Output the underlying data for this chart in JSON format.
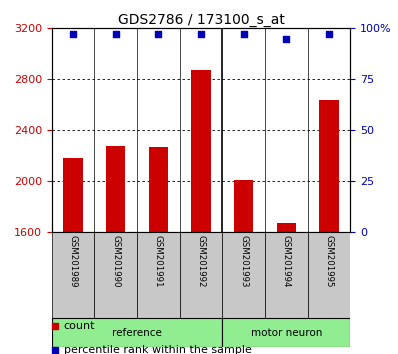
{
  "title": "GDS2786 / 173100_s_at",
  "samples": [
    "GSM201989",
    "GSM201990",
    "GSM201991",
    "GSM201992",
    "GSM201993",
    "GSM201994",
    "GSM201995"
  ],
  "counts": [
    2180,
    2280,
    2270,
    2870,
    2010,
    1670,
    2640
  ],
  "percentile_ranks": [
    97,
    97,
    97,
    97,
    97,
    95,
    97
  ],
  "groups": [
    "reference",
    "reference",
    "reference",
    "reference",
    "motor neuron",
    "motor neuron",
    "motor neuron"
  ],
  "bar_color": "#CC0000",
  "blue_color": "#0000BB",
  "ylim_left": [
    1600,
    3200
  ],
  "ylim_right": [
    0,
    100
  ],
  "yticks_left": [
    1600,
    2000,
    2400,
    2800,
    3200
  ],
  "yticks_right": [
    0,
    25,
    50,
    75,
    100
  ],
  "right_tick_labels": [
    "0",
    "25",
    "50",
    "75",
    "100%"
  ],
  "left_tick_color": "#CC0000",
  "right_tick_color": "#0000BB",
  "background_color": "white",
  "tick_area_color": "#C8C8C8",
  "ref_group_color": "#90EE90",
  "motor_group_color": "#90EE90",
  "legend_count_label": "count",
  "legend_percentile_label": "percentile rank within the sample",
  "ref_split": 4,
  "n_samples": 7
}
